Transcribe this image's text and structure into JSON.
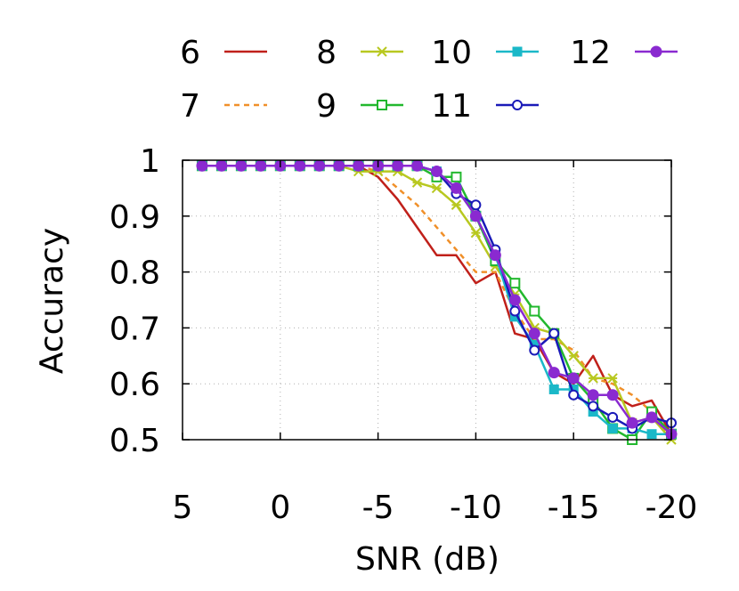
{
  "chart_data": {
    "type": "line",
    "title": "",
    "xlabel": "SNR (dB)",
    "ylabel": "Accuracy",
    "xlim": [
      5,
      -20
    ],
    "ylim": [
      0.5,
      1.0
    ],
    "x_reversed": true,
    "grid": true,
    "legend_position": "top",
    "xticks": [
      5,
      0,
      -5,
      -10,
      -15,
      -20
    ],
    "xtick_labels": [
      "5",
      "0",
      "-5",
      "-10",
      "-15",
      "-20"
    ],
    "yticks": [
      0.5,
      0.6,
      0.7,
      0.8,
      0.9,
      1.0
    ],
    "ytick_labels": [
      "0.5",
      "0.6",
      "0.7",
      "0.8",
      "0.9",
      "1"
    ],
    "x": [
      4,
      3,
      2,
      1,
      0,
      -1,
      -2,
      -3,
      -4,
      -5,
      -6,
      -7,
      -8,
      -9,
      -10,
      -11,
      -12,
      -13,
      -14,
      -15,
      -16,
      -17,
      -18,
      -19,
      -20
    ],
    "series": [
      {
        "name": "6",
        "color": "#c0201a",
        "dash": "solid",
        "marker": "none",
        "values": [
          0.99,
          0.99,
          0.99,
          0.99,
          0.99,
          0.99,
          0.99,
          0.99,
          0.99,
          0.97,
          0.93,
          0.88,
          0.83,
          0.83,
          0.78,
          0.8,
          0.69,
          0.68,
          0.62,
          0.6,
          0.65,
          0.58,
          0.56,
          0.57,
          0.51
        ]
      },
      {
        "name": "7",
        "color": "#f0902a",
        "dash": "dashed",
        "marker": "none",
        "values": [
          0.99,
          0.99,
          0.99,
          0.99,
          0.99,
          0.99,
          0.99,
          0.99,
          0.99,
          0.98,
          0.95,
          0.92,
          0.88,
          0.84,
          0.8,
          0.8,
          0.73,
          0.68,
          0.68,
          0.66,
          0.61,
          0.6,
          0.58,
          0.55,
          0.5
        ]
      },
      {
        "name": "8",
        "color": "#b8c820",
        "dash": "solid",
        "marker": "asterisk",
        "values": [
          0.99,
          0.99,
          0.99,
          0.99,
          0.99,
          0.99,
          0.99,
          0.99,
          0.98,
          0.98,
          0.98,
          0.96,
          0.95,
          0.92,
          0.87,
          0.81,
          0.76,
          0.7,
          0.69,
          0.65,
          0.61,
          0.61,
          0.53,
          0.54,
          0.5
        ]
      },
      {
        "name": "9",
        "color": "#22b82e",
        "dash": "solid",
        "marker": "square-open",
        "values": [
          0.99,
          0.99,
          0.99,
          0.99,
          0.99,
          0.99,
          0.99,
          0.99,
          0.99,
          0.99,
          0.99,
          0.99,
          0.97,
          0.97,
          0.9,
          0.82,
          0.78,
          0.73,
          0.69,
          0.61,
          0.57,
          0.52,
          0.5,
          0.55,
          0.51
        ]
      },
      {
        "name": "10",
        "color": "#1ab8c8",
        "dash": "solid",
        "marker": "square-filled",
        "values": [
          0.99,
          0.99,
          0.99,
          0.99,
          0.99,
          0.99,
          0.99,
          0.99,
          0.99,
          0.99,
          0.99,
          0.99,
          0.98,
          0.95,
          0.9,
          0.83,
          0.72,
          0.67,
          0.59,
          0.59,
          0.55,
          0.52,
          0.52,
          0.51,
          0.51
        ]
      },
      {
        "name": "11",
        "color": "#1a1ab8",
        "dash": "solid",
        "marker": "circle-open",
        "values": [
          0.99,
          0.99,
          0.99,
          0.99,
          0.99,
          0.99,
          0.99,
          0.99,
          0.99,
          0.99,
          0.99,
          0.99,
          0.98,
          0.94,
          0.92,
          0.84,
          0.73,
          0.66,
          0.69,
          0.58,
          0.56,
          0.54,
          0.52,
          0.54,
          0.53
        ]
      },
      {
        "name": "12",
        "color": "#8a2ad0",
        "dash": "solid",
        "marker": "circle-filled",
        "values": [
          0.99,
          0.99,
          0.99,
          0.99,
          0.99,
          0.99,
          0.99,
          0.99,
          0.99,
          0.99,
          0.99,
          0.99,
          0.98,
          0.95,
          0.9,
          0.83,
          0.75,
          0.69,
          0.62,
          0.61,
          0.58,
          0.58,
          0.53,
          0.54,
          0.51
        ]
      }
    ]
  }
}
